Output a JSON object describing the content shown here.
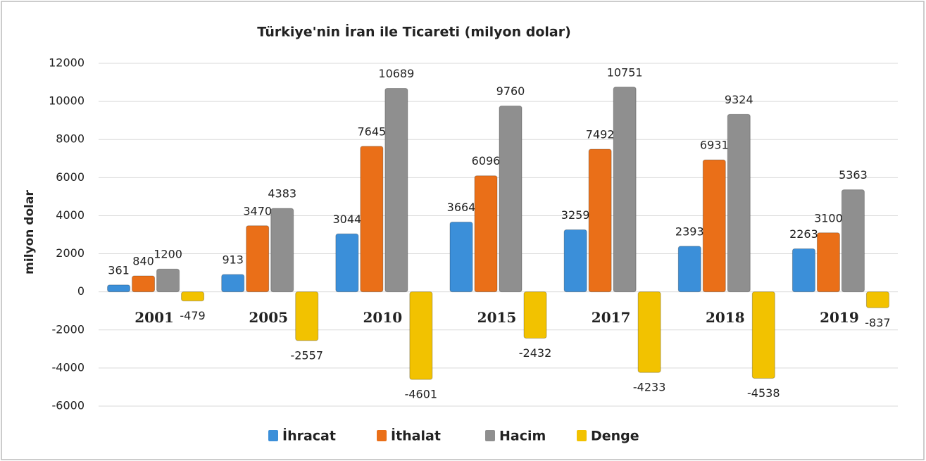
{
  "chart_data": {
    "type": "bar",
    "title": "Türkiye'nin İran ile Ticareti (milyon dolar)",
    "ylabel": "milyon dolar",
    "categories": [
      "2001",
      "2005",
      "2010",
      "2015",
      "2017",
      "2018",
      "2019"
    ],
    "series": [
      {
        "name": "İhracat",
        "color": "#3b8fd9",
        "values": [
          361,
          913,
          3044,
          3664,
          3259,
          2393,
          2263
        ]
      },
      {
        "name": "İthalat",
        "color": "#ea6f18",
        "values": [
          840,
          3470,
          7645,
          6096,
          7492,
          6931,
          3100
        ]
      },
      {
        "name": "Hacim",
        "color": "#8f8f8f",
        "values": [
          1200,
          4383,
          10689,
          9760,
          10751,
          9324,
          5363
        ]
      },
      {
        "name": "Denge",
        "color": "#f2c200",
        "values": [
          -479,
          -2557,
          -4601,
          -2432,
          -4233,
          -4538,
          -837
        ]
      }
    ],
    "ylim": [
      -6000,
      12000
    ],
    "yticks": [
      -6000,
      -4000,
      -2000,
      0,
      2000,
      4000,
      6000,
      8000,
      10000,
      12000
    ],
    "grid": true,
    "legend": "bottom"
  }
}
